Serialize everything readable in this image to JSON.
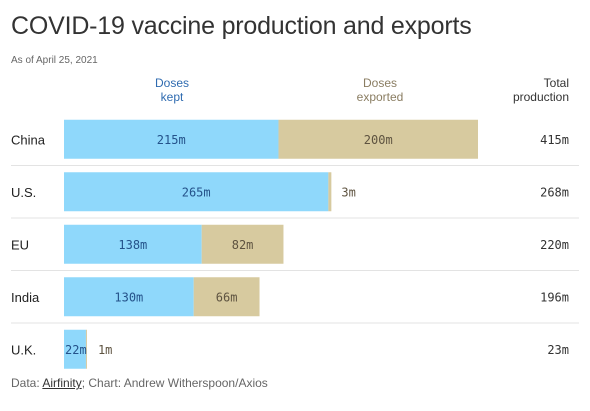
{
  "header": {
    "title": "COVID-19 vaccine production and exports",
    "subtitle": "As of April 25, 2021",
    "col_kept": [
      "Doses",
      "kept"
    ],
    "col_exported": [
      "Doses",
      "exported"
    ],
    "col_total": [
      "Total",
      "production"
    ]
  },
  "colors": {
    "kept": "#8fd8fb",
    "exported": "#d7ca9f",
    "kept_text": "#24528a",
    "exported_text": "#5e5340",
    "divider": "#e3e3e3"
  },
  "chart_data": {
    "type": "bar",
    "stacked": true,
    "orientation": "horizontal",
    "categories": [
      "China",
      "U.S.",
      "EU",
      "India",
      "U.K."
    ],
    "series": [
      {
        "name": "Doses kept",
        "values": [
          215,
          265,
          138,
          130,
          22
        ],
        "labels": [
          "215m",
          "265m",
          "138m",
          "130m",
          "22m"
        ]
      },
      {
        "name": "Doses exported",
        "values": [
          200,
          3,
          82,
          66,
          1
        ],
        "labels": [
          "200m",
          "3m",
          "82m",
          "66m",
          "1m"
        ]
      }
    ],
    "totals": [
      415,
      268,
      220,
      196,
      23
    ],
    "total_labels": [
      "415m",
      "268m",
      "220m",
      "196m",
      "23m"
    ],
    "unit": "m",
    "xlim": [
      0,
      415
    ],
    "grid": false
  },
  "source": {
    "prefix": "Data: ",
    "link": "Airfinity",
    "suffix": "; Chart: Andrew Witherspoon/Axios"
  }
}
